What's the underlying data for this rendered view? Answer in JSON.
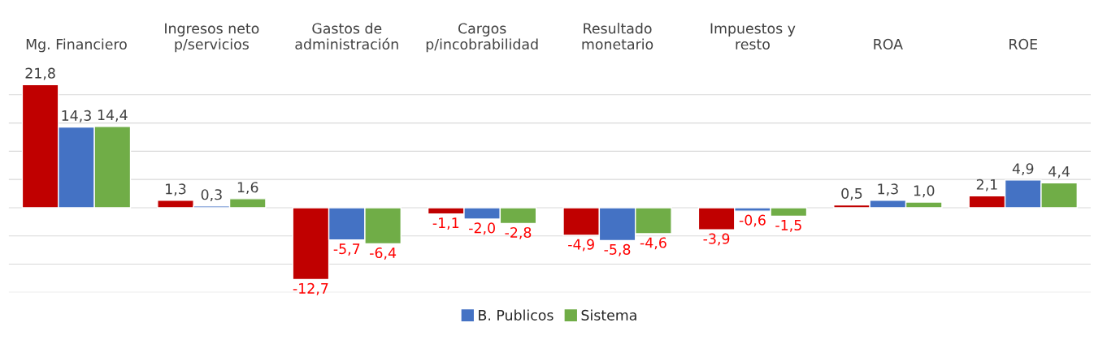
{
  "chart_data": {
    "type": "bar",
    "categories": [
      "Mg. Financiero",
      "Ingresos neto\np/servicios",
      "Gastos de\nadministración",
      "Cargos\np/incobrabilidad",
      "Resultado\nmonetario",
      "Impuestos y\nresto",
      "ROA",
      "ROE"
    ],
    "series": [
      {
        "color": "#c00000",
        "values": [
          21.8,
          1.3,
          -12.7,
          -1.1,
          -4.9,
          -3.9,
          0.5,
          2.1
        ],
        "value_labels": [
          "21,8",
          "1,3",
          "-12,7",
          "-1,1",
          "-4,9",
          "-3,9",
          "0,5",
          "2,1"
        ]
      },
      {
        "name": "B. Publicos",
        "color": "#4472c4",
        "values": [
          14.3,
          0.3,
          -5.7,
          -2.0,
          -5.8,
          -0.6,
          1.3,
          4.9
        ],
        "value_labels": [
          "14,3",
          "0,3",
          "-5,7",
          "-2,0",
          "-5,8",
          "-0,6",
          "1,3",
          "4,9"
        ]
      },
      {
        "name": "Sistema",
        "color": "#70ad47",
        "values": [
          14.4,
          1.6,
          -6.4,
          -2.8,
          -4.6,
          -1.5,
          1.0,
          4.4
        ],
        "value_labels": [
          "14,4",
          "1,6",
          "-6,4",
          "-2,8",
          "-4,6",
          "-1,5",
          "1,0",
          "4,4"
        ]
      }
    ],
    "yticks": [
      {
        "value": -15,
        "label": null
      },
      {
        "value": -10,
        "label": null
      },
      {
        "value": -5,
        "label": null
      },
      {
        "value": 0,
        "label": null
      },
      {
        "value": 5,
        "label": null
      },
      {
        "value": 10,
        "label": null
      },
      {
        "value": 15,
        "label": null
      },
      {
        "value": 20,
        "label": null
      }
    ],
    "grid": "y",
    "legend": "bottom",
    "tick_labels": "x"
  }
}
